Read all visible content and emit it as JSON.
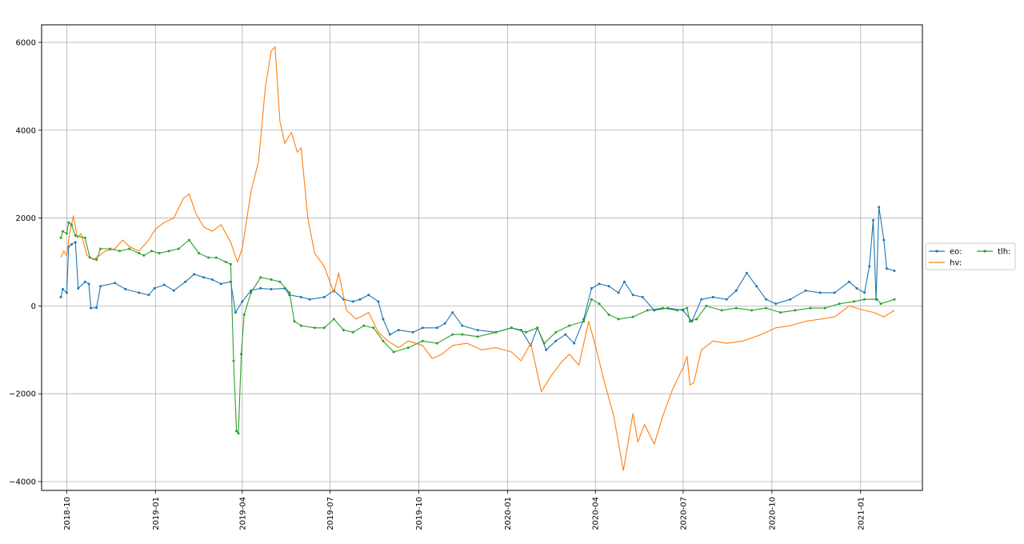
{
  "chart_data": {
    "type": "line",
    "title": "",
    "xlabel": "",
    "ylabel": "",
    "xlim": [
      "2018-09-05",
      "2021-03-06"
    ],
    "ylim": [
      -4200,
      6400
    ],
    "grid": true,
    "legend": {
      "placement": "right-outside",
      "columns": 2
    },
    "x_ticks": [
      "2018-10",
      "2019-01",
      "2019-04",
      "2019-07",
      "2019-10",
      "2020-01",
      "2020-04",
      "2020-07",
      "2020-10",
      "2021-01"
    ],
    "y_ticks": [
      6000,
      4000,
      2000,
      0,
      -2000,
      -4000
    ],
    "y_tick_labels": [
      "6000",
      "4000",
      "2000",
      "0",
      "−2000",
      "−4000"
    ],
    "series": [
      {
        "name": "eo:",
        "color": "#1f77b4",
        "marker": "dot",
        "points": [
          [
            "2018-09-25",
            200
          ],
          [
            "2018-09-27",
            380
          ],
          [
            "2018-10-01",
            300
          ],
          [
            "2018-10-03",
            1350
          ],
          [
            "2018-10-06",
            1400
          ],
          [
            "2018-10-10",
            1450
          ],
          [
            "2018-10-13",
            400
          ],
          [
            "2018-10-20",
            550
          ],
          [
            "2018-10-24",
            500
          ],
          [
            "2018-10-26",
            -50
          ],
          [
            "2018-11-01",
            -40
          ],
          [
            "2018-11-05",
            450
          ],
          [
            "2018-11-20",
            520
          ],
          [
            "2018-12-01",
            380
          ],
          [
            "2018-12-15",
            300
          ],
          [
            "2018-12-25",
            250
          ],
          [
            "2018-12-31",
            400
          ],
          [
            "2019-01-10",
            480
          ],
          [
            "2019-01-20",
            350
          ],
          [
            "2019-02-01",
            550
          ],
          [
            "2019-02-10",
            720
          ],
          [
            "2019-02-20",
            650
          ],
          [
            "2019-03-01",
            600
          ],
          [
            "2019-03-10",
            500
          ],
          [
            "2019-03-20",
            550
          ],
          [
            "2019-03-25",
            -150
          ],
          [
            "2019-04-01",
            100
          ],
          [
            "2019-04-10",
            350
          ],
          [
            "2019-04-20",
            400
          ],
          [
            "2019-05-01",
            380
          ],
          [
            "2019-05-15",
            400
          ],
          [
            "2019-05-20",
            250
          ],
          [
            "2019-06-01",
            200
          ],
          [
            "2019-06-10",
            150
          ],
          [
            "2019-06-25",
            200
          ],
          [
            "2019-07-05",
            350
          ],
          [
            "2019-07-15",
            150
          ],
          [
            "2019-07-25",
            100
          ],
          [
            "2019-08-01",
            150
          ],
          [
            "2019-08-10",
            250
          ],
          [
            "2019-08-20",
            100
          ],
          [
            "2019-08-25",
            -300
          ],
          [
            "2019-09-01",
            -650
          ],
          [
            "2019-09-10",
            -550
          ],
          [
            "2019-09-25",
            -600
          ],
          [
            "2019-10-05",
            -500
          ],
          [
            "2019-10-20",
            -500
          ],
          [
            "2019-10-28",
            -400
          ],
          [
            "2019-11-05",
            -150
          ],
          [
            "2019-11-15",
            -450
          ],
          [
            "2019-12-01",
            -550
          ],
          [
            "2019-12-20",
            -600
          ],
          [
            "2020-01-05",
            -500
          ],
          [
            "2020-01-15",
            -550
          ],
          [
            "2020-01-25",
            -900
          ],
          [
            "2020-02-01",
            -500
          ],
          [
            "2020-02-10",
            -1000
          ],
          [
            "2020-02-20",
            -800
          ],
          [
            "2020-03-01",
            -650
          ],
          [
            "2020-03-10",
            -850
          ],
          [
            "2020-03-20",
            -300
          ],
          [
            "2020-03-28",
            400
          ],
          [
            "2020-04-05",
            500
          ],
          [
            "2020-04-15",
            450
          ],
          [
            "2020-04-25",
            300
          ],
          [
            "2020-05-01",
            550
          ],
          [
            "2020-05-10",
            250
          ],
          [
            "2020-05-20",
            200
          ],
          [
            "2020-06-01",
            -100
          ],
          [
            "2020-06-15",
            -50
          ],
          [
            "2020-07-01",
            -100
          ],
          [
            "2020-07-10",
            -350
          ],
          [
            "2020-07-20",
            150
          ],
          [
            "2020-08-01",
            200
          ],
          [
            "2020-08-15",
            150
          ],
          [
            "2020-08-25",
            350
          ],
          [
            "2020-09-05",
            750
          ],
          [
            "2020-09-15",
            450
          ],
          [
            "2020-09-25",
            150
          ],
          [
            "2020-10-05",
            50
          ],
          [
            "2020-10-20",
            150
          ],
          [
            "2020-11-05",
            350
          ],
          [
            "2020-11-20",
            300
          ],
          [
            "2020-12-05",
            300
          ],
          [
            "2020-12-20",
            550
          ],
          [
            "2020-12-28",
            400
          ],
          [
            "2021-01-05",
            300
          ],
          [
            "2021-01-10",
            900
          ],
          [
            "2021-01-14",
            1950
          ],
          [
            "2021-01-17",
            150
          ],
          [
            "2021-01-20",
            2250
          ],
          [
            "2021-01-25",
            1500
          ],
          [
            "2021-01-28",
            850
          ],
          [
            "2021-02-05",
            800
          ]
        ]
      },
      {
        "name": "hv:",
        "color": "#ff7f0e",
        "marker": "none",
        "points": [
          [
            "2018-09-25",
            1100
          ],
          [
            "2018-09-28",
            1250
          ],
          [
            "2018-10-01",
            1150
          ],
          [
            "2018-10-04",
            1650
          ],
          [
            "2018-10-08",
            2050
          ],
          [
            "2018-10-12",
            1550
          ],
          [
            "2018-10-16",
            1650
          ],
          [
            "2018-10-22",
            1150
          ],
          [
            "2018-10-29",
            1050
          ],
          [
            "2018-11-10",
            1250
          ],
          [
            "2018-11-20",
            1300
          ],
          [
            "2018-11-28",
            1500
          ],
          [
            "2018-12-05",
            1350
          ],
          [
            "2018-12-15",
            1250
          ],
          [
            "2018-12-25",
            1500
          ],
          [
            "2019-01-01",
            1750
          ],
          [
            "2019-01-10",
            1900
          ],
          [
            "2019-01-20",
            2000
          ],
          [
            "2019-01-30",
            2450
          ],
          [
            "2019-02-05",
            2550
          ],
          [
            "2019-02-12",
            2100
          ],
          [
            "2019-02-20",
            1800
          ],
          [
            "2019-03-01",
            1700
          ],
          [
            "2019-03-10",
            1850
          ],
          [
            "2019-03-20",
            1450
          ],
          [
            "2019-03-27",
            1000
          ],
          [
            "2019-04-01",
            1300
          ],
          [
            "2019-04-10",
            2600
          ],
          [
            "2019-04-18",
            3300
          ],
          [
            "2019-04-25",
            5000
          ],
          [
            "2019-05-01",
            5800
          ],
          [
            "2019-05-05",
            5900
          ],
          [
            "2019-05-10",
            4200
          ],
          [
            "2019-05-15",
            3700
          ],
          [
            "2019-05-22",
            3950
          ],
          [
            "2019-05-28",
            3500
          ],
          [
            "2019-06-01",
            3600
          ],
          [
            "2019-06-08",
            2000
          ],
          [
            "2019-06-15",
            1200
          ],
          [
            "2019-06-25",
            900
          ],
          [
            "2019-07-05",
            300
          ],
          [
            "2019-07-10",
            750
          ],
          [
            "2019-07-18",
            -100
          ],
          [
            "2019-07-28",
            -300
          ],
          [
            "2019-08-10",
            -150
          ],
          [
            "2019-08-20",
            -600
          ],
          [
            "2019-08-30",
            -800
          ],
          [
            "2019-09-10",
            -950
          ],
          [
            "2019-09-20",
            -800
          ],
          [
            "2019-10-05",
            -900
          ],
          [
            "2019-10-15",
            -1200
          ],
          [
            "2019-10-25",
            -1100
          ],
          [
            "2019-11-05",
            -900
          ],
          [
            "2019-11-20",
            -850
          ],
          [
            "2019-12-05",
            -1000
          ],
          [
            "2019-12-20",
            -950
          ],
          [
            "2020-01-05",
            -1050
          ],
          [
            "2020-01-15",
            -1250
          ],
          [
            "2020-01-25",
            -850
          ],
          [
            "2020-02-05",
            -1950
          ],
          [
            "2020-02-15",
            -1600
          ],
          [
            "2020-02-25",
            -1300
          ],
          [
            "2020-03-05",
            -1100
          ],
          [
            "2020-03-15",
            -1350
          ],
          [
            "2020-03-25",
            -350
          ],
          [
            "2020-04-01",
            -900
          ],
          [
            "2020-04-10",
            -1700
          ],
          [
            "2020-04-20",
            -2500
          ],
          [
            "2020-04-30",
            -3750
          ],
          [
            "2020-05-10",
            -2450
          ],
          [
            "2020-05-15",
            -3100
          ],
          [
            "2020-05-22",
            -2700
          ],
          [
            "2020-06-01",
            -3150
          ],
          [
            "2020-06-10",
            -2500
          ],
          [
            "2020-06-20",
            -1900
          ],
          [
            "2020-07-01",
            -1400
          ],
          [
            "2020-07-05",
            -1150
          ],
          [
            "2020-07-08",
            -1800
          ],
          [
            "2020-07-12",
            -1750
          ],
          [
            "2020-07-20",
            -1000
          ],
          [
            "2020-08-01",
            -800
          ],
          [
            "2020-08-15",
            -850
          ],
          [
            "2020-09-01",
            -800
          ],
          [
            "2020-09-20",
            -650
          ],
          [
            "2020-10-05",
            -500
          ],
          [
            "2020-10-20",
            -450
          ],
          [
            "2020-11-05",
            -350
          ],
          [
            "2020-11-20",
            -300
          ],
          [
            "2020-12-05",
            -250
          ],
          [
            "2020-12-20",
            0
          ],
          [
            "2021-01-05",
            -100
          ],
          [
            "2021-01-15",
            -150
          ],
          [
            "2021-01-25",
            -250
          ],
          [
            "2021-02-05",
            -100
          ]
        ]
      },
      {
        "name": "tlh:",
        "color": "#2ca02c",
        "marker": "dot",
        "points": [
          [
            "2018-09-25",
            1550
          ],
          [
            "2018-09-27",
            1700
          ],
          [
            "2018-10-01",
            1650
          ],
          [
            "2018-10-03",
            1900
          ],
          [
            "2018-10-06",
            1850
          ],
          [
            "2018-10-10",
            1600
          ],
          [
            "2018-10-20",
            1550
          ],
          [
            "2018-10-25",
            1100
          ],
          [
            "2018-11-01",
            1050
          ],
          [
            "2018-11-05",
            1300
          ],
          [
            "2018-11-15",
            1300
          ],
          [
            "2018-11-25",
            1250
          ],
          [
            "2018-12-05",
            1300
          ],
          [
            "2018-12-15",
            1200
          ],
          [
            "2018-12-20",
            1150
          ],
          [
            "2018-12-28",
            1250
          ],
          [
            "2019-01-05",
            1200
          ],
          [
            "2019-01-15",
            1250
          ],
          [
            "2019-01-25",
            1300
          ],
          [
            "2019-02-05",
            1500
          ],
          [
            "2019-02-15",
            1200
          ],
          [
            "2019-02-25",
            1100
          ],
          [
            "2019-03-05",
            1100
          ],
          [
            "2019-03-15",
            1000
          ],
          [
            "2019-03-20",
            950
          ],
          [
            "2019-03-23",
            -1250
          ],
          [
            "2019-03-26",
            -2850
          ],
          [
            "2019-03-28",
            -2900
          ],
          [
            "2019-03-31",
            -1100
          ],
          [
            "2019-04-03",
            -200
          ],
          [
            "2019-04-10",
            300
          ],
          [
            "2019-04-20",
            650
          ],
          [
            "2019-05-01",
            600
          ],
          [
            "2019-05-10",
            550
          ],
          [
            "2019-05-20",
            300
          ],
          [
            "2019-05-25",
            -350
          ],
          [
            "2019-06-01",
            -450
          ],
          [
            "2019-06-15",
            -500
          ],
          [
            "2019-06-25",
            -500
          ],
          [
            "2019-07-05",
            -300
          ],
          [
            "2019-07-15",
            -550
          ],
          [
            "2019-07-25",
            -600
          ],
          [
            "2019-08-05",
            -450
          ],
          [
            "2019-08-15",
            -500
          ],
          [
            "2019-08-25",
            -800
          ],
          [
            "2019-09-05",
            -1050
          ],
          [
            "2019-09-20",
            -950
          ],
          [
            "2019-10-05",
            -800
          ],
          [
            "2019-10-20",
            -850
          ],
          [
            "2019-11-05",
            -650
          ],
          [
            "2019-11-15",
            -650
          ],
          [
            "2019-12-01",
            -700
          ],
          [
            "2019-12-20",
            -600
          ],
          [
            "2020-01-05",
            -500
          ],
          [
            "2020-01-20",
            -600
          ],
          [
            "2020-02-01",
            -500
          ],
          [
            "2020-02-08",
            -850
          ],
          [
            "2020-02-20",
            -600
          ],
          [
            "2020-03-05",
            -450
          ],
          [
            "2020-03-20",
            -350
          ],
          [
            "2020-03-28",
            150
          ],
          [
            "2020-04-05",
            50
          ],
          [
            "2020-04-15",
            -200
          ],
          [
            "2020-04-25",
            -300
          ],
          [
            "2020-05-10",
            -250
          ],
          [
            "2020-05-25",
            -100
          ],
          [
            "2020-06-10",
            -50
          ],
          [
            "2020-06-25",
            -100
          ],
          [
            "2020-07-05",
            -50
          ],
          [
            "2020-07-08",
            -350
          ],
          [
            "2020-07-15",
            -300
          ],
          [
            "2020-07-25",
            0
          ],
          [
            "2020-08-10",
            -100
          ],
          [
            "2020-08-25",
            -50
          ],
          [
            "2020-09-10",
            -100
          ],
          [
            "2020-09-25",
            -50
          ],
          [
            "2020-10-10",
            -150
          ],
          [
            "2020-10-25",
            -100
          ],
          [
            "2020-11-10",
            -50
          ],
          [
            "2020-11-25",
            -50
          ],
          [
            "2020-12-10",
            50
          ],
          [
            "2020-12-25",
            100
          ],
          [
            "2021-01-05",
            150
          ],
          [
            "2021-01-18",
            150
          ],
          [
            "2021-01-22",
            50
          ],
          [
            "2021-02-05",
            150
          ]
        ]
      }
    ]
  }
}
